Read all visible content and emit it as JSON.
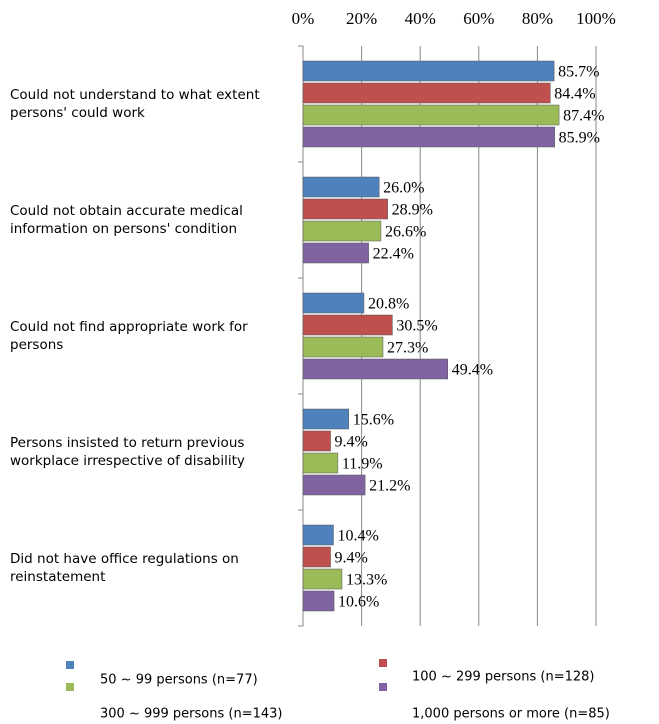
{
  "chart_data": {
    "type": "hbar",
    "categories": [
      "Could not understand to what extent persons' could work",
      "Could not obtain accurate medical information on persons' condition",
      "Could not find appropriate work for persons",
      "Persons insisted to return previous workplace irrespective of disability",
      "Did not have office regulations on reinstatement"
    ],
    "series": [
      {
        "name": "50 ~ 99 persons (n=77)",
        "color": "#4f81bd",
        "values": [
          85.7,
          26.0,
          20.8,
          15.6,
          10.4
        ],
        "value_labels": [
          "85.7%",
          "26.0%",
          "20.8%",
          "15.6%",
          "10.4%"
        ]
      },
      {
        "name": "100 ~ 299 persons (n=128)",
        "color": "#c0504d",
        "values": [
          84.4,
          28.9,
          30.5,
          9.4,
          9.4
        ],
        "value_labels": [
          "84.4%",
          "28.9%",
          "30.5%",
          "9.4%",
          "9.4%"
        ]
      },
      {
        "name": "300 ~ 999 persons (n=143)",
        "color": "#9bbb59",
        "values": [
          87.4,
          26.6,
          27.3,
          11.9,
          13.3
        ],
        "value_labels": [
          "87.4%",
          "26.6%",
          "27.3%",
          "11.9%",
          "13.3%"
        ]
      },
      {
        "name": "1,000 persons or more (n=85)",
        "color": "#8064a2",
        "values": [
          85.9,
          22.4,
          49.4,
          21.2,
          10.6
        ],
        "value_labels": [
          "85.9%",
          "22.4%",
          "49.4%",
          "21.2%",
          "10.6%"
        ]
      }
    ],
    "xlim": [
      0,
      100
    ],
    "xticks": [
      {
        "value": 0,
        "label": "0%"
      },
      {
        "value": 20,
        "label": "20%"
      },
      {
        "value": 40,
        "label": "40%"
      },
      {
        "value": 60,
        "label": "60%"
      },
      {
        "value": 80,
        "label": "80%"
      },
      {
        "value": 100,
        "label": "100%"
      }
    ],
    "grid": true
  }
}
